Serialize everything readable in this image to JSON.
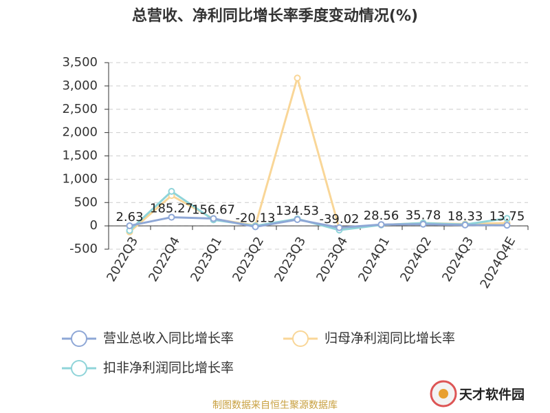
{
  "chart_data": {
    "type": "line",
    "title": "总营收、净利同比增长率季度变动情况(%)",
    "source": "制图数据来自恒生聚源数据库",
    "watermark": "天才软件园",
    "categories": [
      "2022Q3",
      "2022Q4",
      "2023Q1",
      "2023Q2",
      "2023Q3",
      "2023Q4",
      "2024Q1",
      "2024Q2",
      "2024Q3",
      "2024Q4E"
    ],
    "series": [
      {
        "name": "营业总收入同比增长率",
        "color": "#8ea7d6",
        "values": [
          2.63,
          185.27,
          156.67,
          -20.13,
          134.53,
          -39.02,
          28.56,
          35.78,
          18.33,
          13.75
        ]
      },
      {
        "name": "归母净利润同比增长率",
        "color": "#f9d697",
        "values": [
          -130,
          650,
          150,
          10,
          3170,
          -60,
          20,
          60,
          40,
          60
        ]
      },
      {
        "name": "扣非净利润同比增长率",
        "color": "#8fd4d9",
        "values": [
          -100,
          740,
          130,
          0,
          150,
          -90,
          20,
          60,
          30,
          160
        ]
      }
    ],
    "labeled_series": 0,
    "ylim": [
      -500,
      3500
    ],
    "yticks": [
      -500,
      0,
      500,
      {
        "value": 1000,
        "label": "1,000"
      },
      {
        "value": 1500,
        "label": "1,500"
      },
      {
        "value": 2000,
        "label": "2,000"
      },
      {
        "value": 2500,
        "label": "2,500"
      },
      {
        "value": 3000,
        "label": "3,000"
      },
      {
        "value": 3500,
        "label": "3,500"
      }
    ],
    "grid": true
  }
}
